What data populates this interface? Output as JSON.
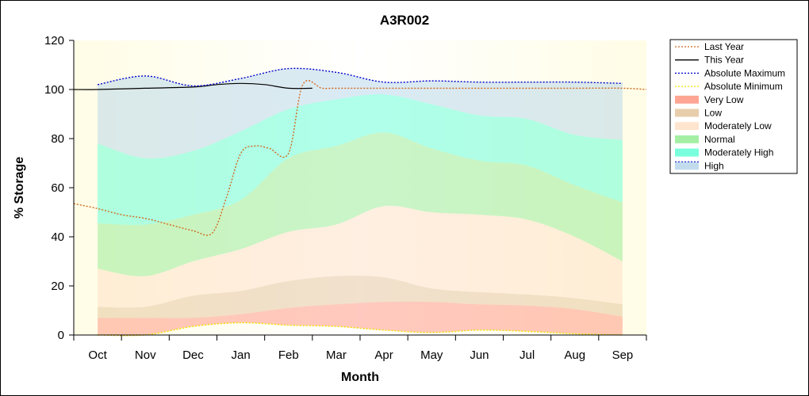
{
  "chart_data": {
    "type": "area",
    "title": "A3R002",
    "xlabel": "Month",
    "ylabel": "% Storage",
    "categories": [
      "Oct",
      "Nov",
      "Dec",
      "Jan",
      "Feb",
      "Mar",
      "Apr",
      "May",
      "Jun",
      "Jul",
      "Aug",
      "Sep"
    ],
    "x_range": [
      -0.5,
      11.5
    ],
    "ylim": [
      0,
      120
    ],
    "yticks": [
      0,
      20,
      40,
      60,
      80,
      100,
      120
    ],
    "grid": false,
    "legend_position": "right",
    "bands": [
      {
        "name": "Very Low",
        "color": "#ff7f66",
        "x": [
          0,
          1,
          2,
          3,
          4,
          5,
          6,
          7,
          8,
          9,
          10,
          11
        ],
        "lower": [
          0,
          0,
          3.5,
          5,
          4,
          3.5,
          2,
          1,
          2,
          1.5,
          0.5,
          0
        ],
        "upper": [
          7,
          7,
          7,
          8.5,
          11,
          12.5,
          13.5,
          13.5,
          12.5,
          12,
          10.5,
          7.5
        ]
      },
      {
        "name": "Low",
        "color": "#deb887",
        "x": [
          0,
          1,
          2,
          3,
          4,
          5,
          6,
          7,
          8,
          9,
          10,
          11
        ],
        "lower": [
          7,
          7,
          7,
          8.5,
          11,
          12.5,
          13.5,
          13.5,
          12.5,
          12,
          10.5,
          7.5
        ],
        "upper": [
          11.5,
          11.5,
          16,
          18,
          22,
          24,
          23.5,
          19,
          17.5,
          16.5,
          15,
          12.5
        ]
      },
      {
        "name": "Moderately Low",
        "color": "#ffdab9",
        "x": [
          0,
          1,
          2,
          3,
          4,
          5,
          6,
          7,
          8,
          9,
          10,
          11
        ],
        "lower": [
          11.5,
          11.5,
          16,
          18,
          22,
          24,
          23.5,
          19,
          17.5,
          16.5,
          15,
          12.5
        ],
        "upper": [
          27,
          24,
          30,
          35,
          42,
          45,
          52.5,
          50,
          49,
          47,
          40,
          30
        ]
      },
      {
        "name": "Normal",
        "color": "#7ee87e",
        "x": [
          0,
          1,
          2,
          3,
          4,
          5,
          6,
          7,
          8,
          9,
          10,
          11
        ],
        "lower": [
          27,
          24,
          30,
          35,
          42,
          45,
          52.5,
          50,
          49,
          47,
          40,
          30
        ],
        "upper": [
          45.5,
          45,
          49,
          55,
          72,
          77,
          82.5,
          76,
          71,
          69,
          61,
          54
        ]
      },
      {
        "name": "Moderately High",
        "color": "#40ffcf",
        "x": [
          0,
          1,
          2,
          3,
          4,
          5,
          6,
          7,
          8,
          9,
          10,
          11
        ],
        "lower": [
          45.5,
          45,
          49,
          55,
          72,
          77,
          82.5,
          76,
          71,
          69,
          61,
          54
        ],
        "upper": [
          78,
          72,
          75,
          83,
          92,
          96,
          98,
          94,
          89.5,
          88,
          81.5,
          79.5
        ]
      },
      {
        "name": "High",
        "color": "#a8cde6",
        "x": [
          0,
          1,
          2,
          3,
          4,
          5,
          6,
          7,
          8,
          9,
          10,
          11
        ],
        "lower": [
          78,
          72,
          75,
          83,
          92,
          96,
          98,
          94,
          89.5,
          88,
          81.5,
          79.5
        ],
        "upper": [
          102,
          105.5,
          101.5,
          104.5,
          108.5,
          107,
          103,
          103.5,
          103,
          103,
          103,
          102.5
        ]
      }
    ],
    "series": [
      {
        "name": "Last Year",
        "color": "#d2691e",
        "style": "dotted",
        "x": [
          -0.5,
          0,
          0.5,
          1,
          1.5,
          2,
          2.4,
          2.7,
          3,
          3.3,
          3.6,
          4,
          4.3,
          4.7,
          5,
          6,
          7,
          8,
          9,
          10,
          11,
          11.5
        ],
        "y": [
          53.5,
          51.5,
          49,
          47.5,
          45,
          42.5,
          41.5,
          56,
          74,
          77,
          76,
          74,
          102,
          100.5,
          100.5,
          100.5,
          100.5,
          100.5,
          100.5,
          100.5,
          100.5,
          100
        ]
      },
      {
        "name": "This Year",
        "color": "#000000",
        "style": "solid",
        "x": [
          -0.5,
          0,
          1,
          2,
          2.5,
          3,
          3.5,
          4,
          4.5
        ],
        "y": [
          100,
          100,
          100.5,
          101,
          102,
          102.5,
          102,
          100.5,
          100.5
        ]
      },
      {
        "name": "Absolute Maximum",
        "color": "#0000cd",
        "style": "dotted",
        "x": [
          0,
          1,
          2,
          3,
          4,
          5,
          6,
          7,
          8,
          9,
          10,
          11
        ],
        "y": [
          102,
          105.5,
          101.5,
          104.5,
          108.5,
          107,
          103,
          103.5,
          103,
          103,
          103,
          102.5
        ]
      },
      {
        "name": "Absolute Minimum",
        "color": "#f0e000",
        "style": "dotted",
        "x": [
          0,
          1,
          2,
          3,
          4,
          5,
          6,
          7,
          8,
          9,
          10,
          11
        ],
        "y": [
          0,
          0,
          3.5,
          5,
          4,
          3.5,
          2,
          1,
          2,
          1.5,
          0.5,
          0
        ]
      }
    ],
    "legend": [
      {
        "name": "Last Year",
        "kind": "line",
        "color": "#d2691e",
        "style": "dotted"
      },
      {
        "name": "This Year",
        "kind": "line",
        "color": "#000000",
        "style": "solid"
      },
      {
        "name": "Absolute Maximum",
        "kind": "line",
        "color": "#0000cd",
        "style": "dotted"
      },
      {
        "name": "Absolute Minimum",
        "kind": "line",
        "color": "#f0e000",
        "style": "dotted"
      },
      {
        "name": "Very Low",
        "kind": "band",
        "color": "#ff7f66"
      },
      {
        "name": "Low",
        "kind": "band",
        "color": "#deb887"
      },
      {
        "name": "Moderately Low",
        "kind": "band",
        "color": "#ffdab9"
      },
      {
        "name": "Normal",
        "kind": "band",
        "color": "#7ee87e"
      },
      {
        "name": "Moderately High",
        "kind": "band",
        "color": "#40ffcf"
      },
      {
        "name": "High",
        "kind": "band",
        "color": "#a8cde6",
        "border": "#0000cd"
      }
    ]
  }
}
